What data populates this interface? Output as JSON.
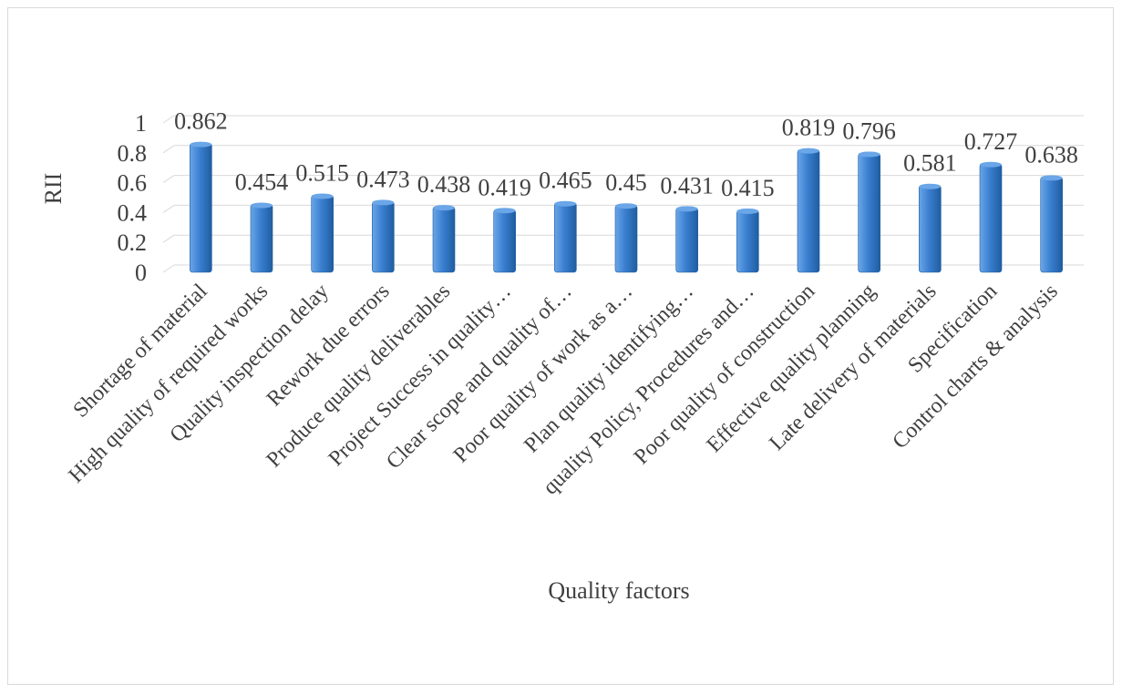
{
  "chart_data": {
    "type": "bar",
    "title": "",
    "xlabel": "Quality factors",
    "ylabel": "RII",
    "categories": [
      "Shortage of material",
      "High quality of required works",
      "Quality inspection delay",
      "Rework due errors",
      "Produce quality deliverables",
      "Project Success in quality…",
      "Clear scope and quality of…",
      "Poor quality of work as a…",
      "Plan quality identifying…",
      "quality Policy, Procedures and…",
      "Poor quality of construction",
      "Effective quality planning",
      "Late delivery of materials",
      "Specification",
      "Control charts & analysis"
    ],
    "values": [
      0.862,
      0.454,
      0.515,
      0.473,
      0.438,
      0.419,
      0.465,
      0.45,
      0.431,
      0.415,
      0.819,
      0.796,
      0.581,
      0.727,
      0.638
    ],
    "data_labels": [
      "0.862",
      "0.454",
      "0.515",
      "0.473",
      "0.438",
      "0.419",
      "0.465",
      "0.45",
      "0.431",
      "0.415",
      "0.819",
      "0.796",
      "0.581",
      "0.727",
      "0.638"
    ],
    "ylim": [
      0,
      1
    ],
    "yticks": [
      0,
      0.2,
      0.4,
      0.6,
      0.8,
      1
    ],
    "ytick_labels": [
      "0",
      "0.2",
      "0.4",
      "0.6",
      "0.8",
      "1"
    ],
    "grid": true,
    "legend": "none",
    "colors": {
      "bar": "#3a7fd0",
      "bar_light": "#6aa6e8",
      "bar_dark": "#1f5da0",
      "grid": "#d9d9d9",
      "text": "#404040"
    }
  }
}
